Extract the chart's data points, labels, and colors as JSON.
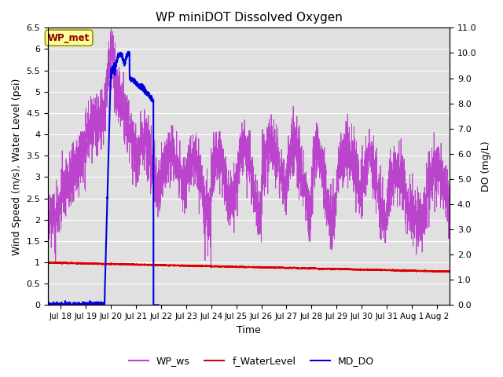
{
  "title": "WP miniDOT Dissolved Oxygen",
  "xlabel": "Time",
  "ylabel_left": "Wind Speed (m/s), Water Level (psi)",
  "ylabel_right": "DO (mg/L)",
  "annotation_text": "WP_met",
  "annotation_bg": "#FFFF99",
  "annotation_border": "#8B8000",
  "left_ylim": [
    0.0,
    6.5
  ],
  "right_ylim": [
    0.0,
    11.0
  ],
  "xtick_labels": [
    "Jul 18",
    "Jul 19",
    "Jul 20",
    "Jul 21",
    "Jul 22",
    "Jul 23",
    "Jul 24",
    "Jul 25",
    "Jul 26",
    "Jul 27",
    "Jul 28",
    "Jul 29",
    "Jul 30",
    "Jul 31",
    "Aug 1",
    "Aug 2"
  ],
  "wp_ws_color": "#BB44CC",
  "f_waterlevel_color": "#DD0000",
  "md_do_color": "#0000DD",
  "bg_color": "#E0E0E0",
  "legend_labels": [
    "WP_ws",
    "f_WaterLevel",
    "MD_DO"
  ],
  "legend_colors": [
    "#BB44CC",
    "#DD0000",
    "#0000DD"
  ]
}
